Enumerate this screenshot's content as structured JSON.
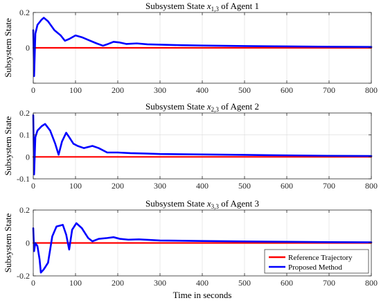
{
  "colors": {
    "reference": "#ff0000",
    "proposed": "#0000ff",
    "grid": "#dcdcdc",
    "axis": "#262626"
  },
  "chart_data": [
    {
      "type": "line",
      "title_pre": "Subsystem State ",
      "title_var": "x",
      "title_sub": "1,3",
      "title_post": " of Agent 1",
      "xlabel": "",
      "ylabel": "Subsystem State",
      "xlim": [
        0,
        800
      ],
      "ylim": [
        -0.2,
        0.2
      ],
      "xticks": [
        0,
        100,
        200,
        300,
        400,
        500,
        600,
        700,
        800
      ],
      "yticks": [
        -0.2,
        0,
        0.2
      ],
      "ytick_labels": [
        "",
        "0",
        "0.2"
      ],
      "grid": true,
      "series": [
        {
          "key": "reference",
          "values": [
            [
              0,
              0
            ],
            [
              800,
              0
            ]
          ]
        },
        {
          "key": "proposed",
          "values": [
            [
              0,
              0.1
            ],
            [
              2,
              -0.16
            ],
            [
              5,
              0.08
            ],
            [
              10,
              0.13
            ],
            [
              20,
              0.16
            ],
            [
              25,
              0.17
            ],
            [
              35,
              0.15
            ],
            [
              50,
              0.1
            ],
            [
              65,
              0.07
            ],
            [
              75,
              0.04
            ],
            [
              85,
              0.05
            ],
            [
              100,
              0.07
            ],
            [
              115,
              0.06
            ],
            [
              130,
              0.045
            ],
            [
              150,
              0.025
            ],
            [
              165,
              0.012
            ],
            [
              175,
              0.02
            ],
            [
              190,
              0.034
            ],
            [
              205,
              0.03
            ],
            [
              220,
              0.022
            ],
            [
              245,
              0.025
            ],
            [
              270,
              0.02
            ],
            [
              300,
              0.018
            ],
            [
              350,
              0.015
            ],
            [
              400,
              0.013
            ],
            [
              500,
              0.01
            ],
            [
              600,
              0.008
            ],
            [
              700,
              0.006
            ],
            [
              800,
              0.005
            ]
          ]
        }
      ]
    },
    {
      "type": "line",
      "title_pre": "Subsystem State ",
      "title_var": "x",
      "title_sub": "2,3",
      "title_post": " of Agent 2",
      "xlabel": "",
      "ylabel": "Subsystem State",
      "xlim": [
        0,
        800
      ],
      "ylim": [
        -0.1,
        0.2
      ],
      "xticks": [
        0,
        100,
        200,
        300,
        400,
        500,
        600,
        700,
        800
      ],
      "yticks": [
        -0.1,
        0,
        0.1,
        0.2
      ],
      "ytick_labels": [
        "-0.1",
        "0",
        "0.1",
        "0.2"
      ],
      "grid": true,
      "series": [
        {
          "key": "reference",
          "values": [
            [
              0,
              0
            ],
            [
              800,
              0
            ]
          ]
        },
        {
          "key": "proposed",
          "values": [
            [
              0,
              0.19
            ],
            [
              2,
              -0.08
            ],
            [
              5,
              0.09
            ],
            [
              10,
              0.12
            ],
            [
              20,
              0.14
            ],
            [
              28,
              0.15
            ],
            [
              40,
              0.12
            ],
            [
              52,
              0.06
            ],
            [
              60,
              0.01
            ],
            [
              68,
              0.07
            ],
            [
              78,
              0.11
            ],
            [
              85,
              0.09
            ],
            [
              95,
              0.06
            ],
            [
              105,
              0.05
            ],
            [
              120,
              0.04
            ],
            [
              140,
              0.05
            ],
            [
              155,
              0.04
            ],
            [
              175,
              0.02
            ],
            [
              200,
              0.02
            ],
            [
              230,
              0.017
            ],
            [
              270,
              0.015
            ],
            [
              300,
              0.013
            ],
            [
              400,
              0.011
            ],
            [
              500,
              0.009
            ],
            [
              600,
              0.007
            ],
            [
              700,
              0.005
            ],
            [
              800,
              0.004
            ]
          ]
        }
      ]
    },
    {
      "type": "line",
      "title_pre": "Subsystem State ",
      "title_var": "x",
      "title_sub": "3,3",
      "title_post": " of Agent 3",
      "xlabel": "Time in seconds",
      "ylabel": "Subsystem State",
      "xlim": [
        0,
        800
      ],
      "ylim": [
        -0.2,
        0.2
      ],
      "xticks": [
        0,
        100,
        200,
        300,
        400,
        500,
        600,
        700,
        800
      ],
      "yticks": [
        -0.2,
        0,
        0.2
      ],
      "ytick_labels": [
        "-0.2",
        "0",
        "0.2"
      ],
      "grid": true,
      "series": [
        {
          "key": "reference",
          "values": [
            [
              0,
              0
            ],
            [
              800,
              0
            ]
          ]
        },
        {
          "key": "proposed",
          "values": [
            [
              0,
              0.09
            ],
            [
              2,
              -0.05
            ],
            [
              5,
              0.0
            ],
            [
              10,
              -0.02
            ],
            [
              15,
              -0.1
            ],
            [
              18,
              -0.18
            ],
            [
              25,
              -0.16
            ],
            [
              35,
              -0.12
            ],
            [
              45,
              0.04
            ],
            [
              55,
              0.1
            ],
            [
              70,
              0.11
            ],
            [
              78,
              0.05
            ],
            [
              85,
              -0.04
            ],
            [
              92,
              0.08
            ],
            [
              102,
              0.12
            ],
            [
              115,
              0.09
            ],
            [
              130,
              0.03
            ],
            [
              140,
              0.01
            ],
            [
              155,
              0.025
            ],
            [
              175,
              0.03
            ],
            [
              190,
              0.035
            ],
            [
              205,
              0.025
            ],
            [
              225,
              0.02
            ],
            [
              250,
              0.022
            ],
            [
              300,
              0.015
            ],
            [
              400,
              0.012
            ],
            [
              500,
              0.009
            ],
            [
              600,
              0.007
            ],
            [
              700,
              0.005
            ],
            [
              800,
              0.004
            ]
          ]
        }
      ]
    }
  ],
  "legend": {
    "placement": "bottom-right",
    "entries": [
      {
        "key": "reference",
        "label": "Reference Trajectory"
      },
      {
        "key": "proposed",
        "label": "Proposed Method"
      }
    ]
  }
}
